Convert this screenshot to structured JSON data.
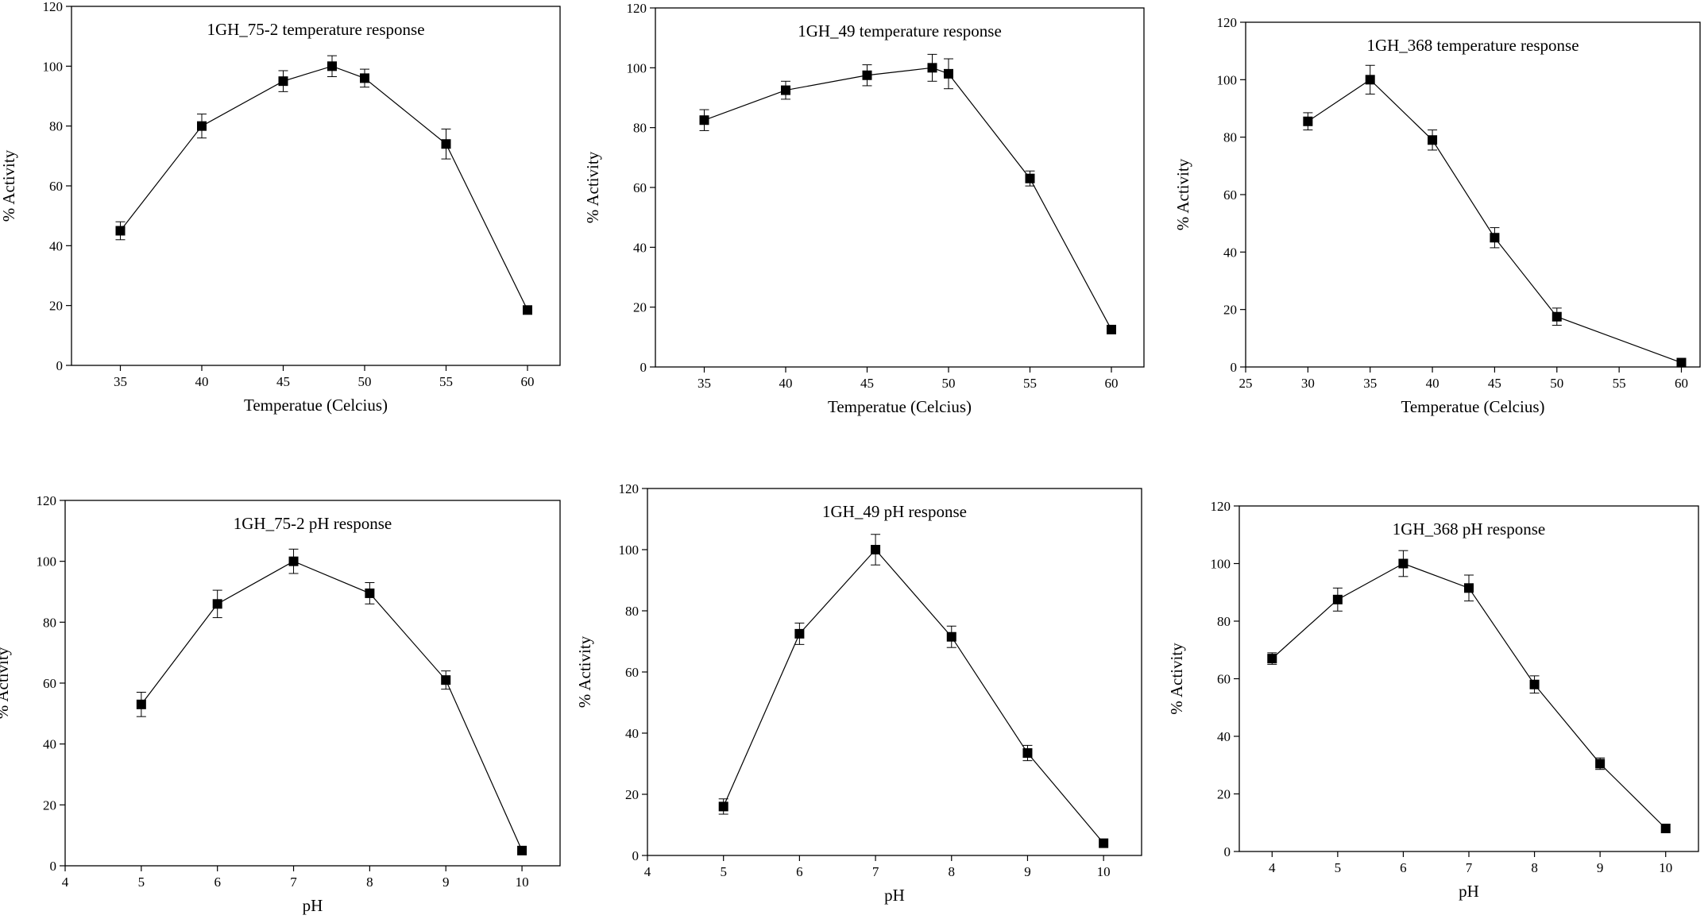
{
  "figure": {
    "chart_data": [
      {
        "type": "line",
        "title": "1GH_75-2 temperature response",
        "xlabel": "Temperatue (Celcius)",
        "ylabel": "% Activity",
        "xlim": [
          32,
          62
        ],
        "ylim": [
          0,
          120
        ],
        "xticks": [
          35,
          40,
          45,
          50,
          55,
          60
        ],
        "yticks": [
          0,
          20,
          40,
          60,
          80,
          100,
          120
        ],
        "grid": false,
        "series": [
          {
            "x": [
              35,
              40,
              45,
              48,
              50,
              55,
              60
            ],
            "y": [
              45,
              80,
              95,
              100,
              96,
              74,
              18.5
            ],
            "error": [
              3,
              4,
              3.5,
              3.5,
              3,
              5,
              0
            ]
          }
        ]
      },
      {
        "type": "line",
        "title": "1GH_49 temperature response",
        "xlabel": "Temperatue (Celcius)",
        "ylabel": "% Activity",
        "xlim": [
          32,
          62
        ],
        "ylim": [
          0,
          120
        ],
        "xticks": [
          35,
          40,
          45,
          50,
          55,
          60
        ],
        "yticks": [
          0,
          20,
          40,
          60,
          80,
          100,
          120
        ],
        "grid": false,
        "series": [
          {
            "x": [
              35,
              40,
              45,
              49,
              50,
              55,
              60
            ],
            "y": [
              82.5,
              92.5,
              97.5,
              100,
              98,
              63,
              12.5
            ],
            "error": [
              3.5,
              3,
              3.5,
              4.5,
              5,
              2.5,
              0
            ]
          }
        ]
      },
      {
        "type": "line",
        "title": "1GH_368 temperature response",
        "xlabel": "Temperatue (Celcius)",
        "ylabel": "% Activity",
        "xlim": [
          25,
          61.5
        ],
        "ylim": [
          0,
          120
        ],
        "xticks": [
          25,
          30,
          35,
          40,
          45,
          50,
          55,
          60
        ],
        "yticks": [
          0,
          20,
          40,
          60,
          80,
          100,
          120
        ],
        "grid": false,
        "series": [
          {
            "x": [
              30,
              35,
              40,
              45,
              50,
              60
            ],
            "y": [
              85.5,
              100,
              79,
              45,
              17.5,
              1.5
            ],
            "error": [
              3,
              5,
              3.5,
              3.5,
              3,
              1.5
            ]
          }
        ]
      },
      {
        "type": "line",
        "title": "1GH_75-2 pH response",
        "xlabel": "pH",
        "ylabel": "% Activity",
        "xlim": [
          4,
          10.5
        ],
        "ylim": [
          0,
          120
        ],
        "xticks": [
          4,
          5,
          6,
          7,
          8,
          9,
          10
        ],
        "yticks": [
          0,
          20,
          40,
          60,
          80,
          100,
          120
        ],
        "grid": false,
        "series": [
          {
            "x": [
              5,
              6,
              7,
              8,
              9,
              10
            ],
            "y": [
              53,
              86,
              100,
              89.5,
              61,
              5
            ],
            "error": [
              4,
              4.5,
              4,
              3.5,
              3,
              0
            ]
          }
        ]
      },
      {
        "type": "line",
        "title": "1GH_49 pH response",
        "xlabel": "pH",
        "ylabel": "% Activity",
        "xlim": [
          4,
          10.5
        ],
        "ylim": [
          0,
          120
        ],
        "xticks": [
          4,
          5,
          6,
          7,
          8,
          9,
          10
        ],
        "yticks": [
          0,
          20,
          40,
          60,
          80,
          100,
          120
        ],
        "grid": false,
        "series": [
          {
            "x": [
              5,
              6,
              7,
              8,
              9,
              10
            ],
            "y": [
              16,
              72.5,
              100,
              71.5,
              33.5,
              4
            ],
            "error": [
              2.5,
              3.5,
              5,
              3.5,
              2.5,
              0
            ]
          }
        ]
      },
      {
        "type": "line",
        "title": "1GH_368 pH response",
        "xlabel": "pH",
        "ylabel": "% Activity",
        "xlim": [
          3.5,
          10.5
        ],
        "ylim": [
          0,
          120
        ],
        "xticks": [
          4,
          5,
          6,
          7,
          8,
          9,
          10
        ],
        "yticks": [
          0,
          20,
          40,
          60,
          80,
          100,
          120
        ],
        "grid": false,
        "series": [
          {
            "x": [
              4,
              5,
              6,
              7,
              8,
              9,
              10
            ],
            "y": [
              67,
              87.5,
              100,
              91.5,
              58,
              30.5,
              8
            ],
            "error": [
              2,
              4,
              4.5,
              4.5,
              3,
              2,
              0
            ]
          }
        ]
      }
    ]
  }
}
